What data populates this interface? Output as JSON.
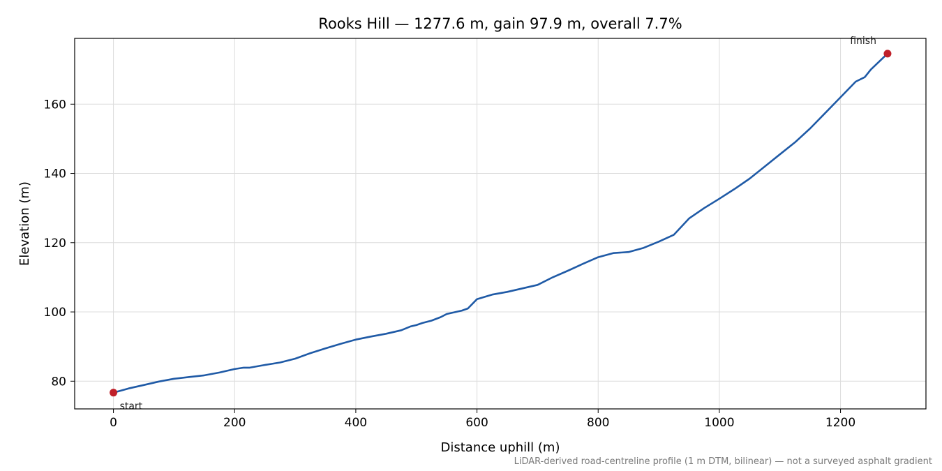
{
  "chart_data": {
    "type": "line",
    "title": "Rooks Hill — 1277.6 m, gain 97.9 m, overall 7.7%",
    "xlabel": "Distance uphill (m)",
    "ylabel": "Elevation (m)",
    "xlim": [
      -64,
      1341
    ],
    "ylim": [
      72,
      179
    ],
    "xticks": [
      0,
      200,
      400,
      600,
      800,
      1000,
      1200
    ],
    "yticks": [
      80,
      100,
      120,
      140,
      160
    ],
    "grid": true,
    "line_color": "#1f5aa6",
    "marker_color": "#c0202a",
    "series": [
      {
        "x": [
          0,
          25,
          50,
          75,
          100,
          125,
          150,
          175,
          200,
          215,
          225,
          250,
          275,
          300,
          325,
          350,
          375,
          400,
          425,
          450,
          475,
          490,
          500,
          510,
          525,
          540,
          550,
          575,
          585,
          600,
          625,
          650,
          675,
          700,
          725,
          750,
          775,
          800,
          825,
          850,
          875,
          900,
          925,
          950,
          975,
          1000,
          1025,
          1050,
          1075,
          1100,
          1125,
          1150,
          1175,
          1200,
          1225,
          1240,
          1250,
          1277.6
        ],
        "y": [
          76.7,
          77.9,
          78.9,
          79.9,
          80.7,
          81.2,
          81.7,
          82.5,
          83.5,
          83.9,
          83.9,
          84.7,
          85.4,
          86.5,
          88.1,
          89.5,
          90.8,
          92.0,
          92.9,
          93.7,
          94.7,
          95.8,
          96.2,
          96.8,
          97.5,
          98.5,
          99.4,
          100.4,
          101.0,
          103.7,
          105.0,
          105.8,
          106.8,
          107.8,
          110.0,
          111.9,
          113.9,
          115.8,
          117.0,
          117.3,
          118.5,
          120.3,
          122.3,
          127.0,
          130.0,
          132.7,
          135.5,
          138.5,
          142.0,
          145.5,
          149.0,
          153.0,
          157.5,
          162.0,
          166.5,
          167.8,
          170.0,
          174.6
        ]
      }
    ],
    "markers": [
      {
        "x": 0,
        "y": 76.7,
        "label": "start"
      },
      {
        "x": 1277.6,
        "y": 174.6,
        "label": "finish"
      }
    ],
    "footnote": "LiDAR-derived road-centreline profile (1 m DTM, bilinear) — not a surveyed asphalt gradient"
  }
}
